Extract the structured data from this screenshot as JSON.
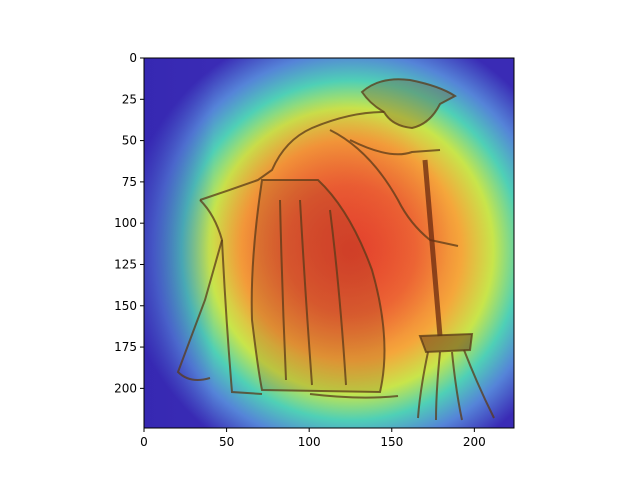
{
  "chart_data": {
    "type": "heatmap",
    "title": "",
    "xlabel": "",
    "ylabel": "",
    "xlim": [
      0,
      224
    ],
    "ylim": [
      224,
      0
    ],
    "x_ticks": [
      0,
      50,
      100,
      150,
      200
    ],
    "y_ticks": [
      0,
      25,
      50,
      75,
      100,
      125,
      150,
      175,
      200
    ],
    "x_tick_labels": [
      "0",
      "50",
      "100",
      "150",
      "200"
    ],
    "y_tick_labels": [
      "0",
      "25",
      "50",
      "75",
      "100",
      "125",
      "150",
      "175",
      "200"
    ],
    "grid": false,
    "image": "attention heatmap overlaid on a sketch of a woman sweeping with a broom",
    "colormap": "jet",
    "colors": {
      "low": "#3b2db8",
      "mid_low": "#35c6c0",
      "mid": "#b9e64a",
      "mid_high": "#f5a33a",
      "high": "#e8462e",
      "sketch": "#5a3a18"
    }
  }
}
